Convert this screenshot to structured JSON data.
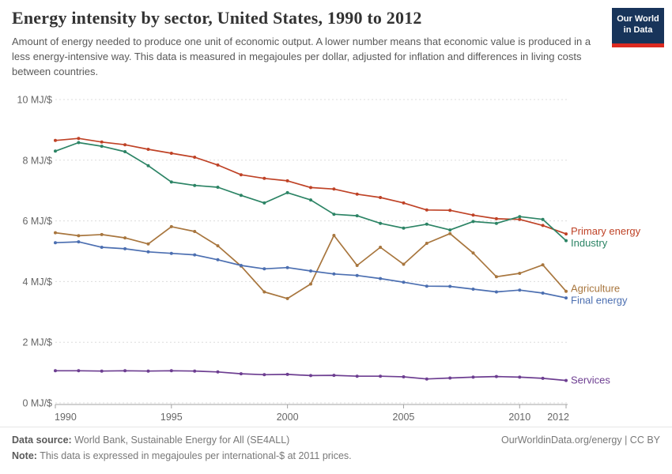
{
  "header": {
    "title": "Energy intensity by sector, United States, 1990 to 2012",
    "subtitle": "Amount of energy needed to produce one unit of economic output. A lower number means that economic value is produced in a less energy-intensive way. This data is measured in megajoules per dollar, adjusted for inflation and differences in living costs between countries.",
    "logo": {
      "line1": "Our World",
      "line2": "in Data",
      "bg_color": "#18345a",
      "stripe_color": "#dc2a20",
      "text_color": "#ffffff"
    }
  },
  "chart_data": {
    "type": "line",
    "title": "Energy intensity by sector, United States, 1990 to 2012",
    "ylabel": "",
    "xlabel": "",
    "unit": "MJ/$",
    "xlim": [
      1990,
      2012
    ],
    "ylim": [
      0,
      10
    ],
    "x_ticks": [
      1990,
      1995,
      2000,
      2005,
      2010,
      2012
    ],
    "y_ticks": [
      0,
      2,
      4,
      6,
      8,
      10
    ],
    "y_tick_suffix": " MJ/$",
    "grid": true,
    "grid_color": "#dcdcdc",
    "axis_color": "#a3a3a3",
    "tick_label_color": "#666666",
    "legend_position": "right of line ends",
    "x": [
      1990,
      1991,
      1992,
      1993,
      1994,
      1995,
      1996,
      1997,
      1998,
      1999,
      2000,
      2001,
      2002,
      2003,
      2004,
      2005,
      2006,
      2007,
      2008,
      2009,
      2010,
      2011,
      2012
    ],
    "series": [
      {
        "name": "Primary energy",
        "color": "#bf4226",
        "values": [
          8.65,
          8.72,
          8.6,
          8.51,
          8.36,
          8.23,
          8.1,
          7.84,
          7.52,
          7.4,
          7.32,
          7.1,
          7.05,
          6.88,
          6.77,
          6.59,
          6.36,
          6.35,
          6.19,
          6.07,
          6.05,
          5.85,
          5.57
        ]
      },
      {
        "name": "Industry",
        "color": "#2c8465",
        "values": [
          8.3,
          8.58,
          8.46,
          8.28,
          7.82,
          7.28,
          7.17,
          7.11,
          6.84,
          6.59,
          6.93,
          6.69,
          6.22,
          6.17,
          5.92,
          5.76,
          5.89,
          5.7,
          5.98,
          5.92,
          6.14,
          6.05,
          5.35
        ]
      },
      {
        "name": "Agriculture",
        "color": "#a8763e",
        "values": [
          5.61,
          5.51,
          5.55,
          5.44,
          5.24,
          5.81,
          5.65,
          5.18,
          4.51,
          3.66,
          3.44,
          3.92,
          5.52,
          4.53,
          5.13,
          4.57,
          5.26,
          5.58,
          4.94,
          4.16,
          4.27,
          4.55,
          3.68
        ]
      },
      {
        "name": "Final energy",
        "color": "#4c6fb1",
        "values": [
          5.28,
          5.31,
          5.13,
          5.08,
          4.98,
          4.93,
          4.88,
          4.72,
          4.53,
          4.42,
          4.46,
          4.35,
          4.25,
          4.2,
          4.1,
          3.98,
          3.85,
          3.84,
          3.75,
          3.66,
          3.72,
          3.62,
          3.46
        ]
      },
      {
        "name": "Services",
        "color": "#6d3e91",
        "values": [
          1.06,
          1.06,
          1.05,
          1.06,
          1.05,
          1.06,
          1.05,
          1.02,
          0.96,
          0.93,
          0.94,
          0.9,
          0.91,
          0.88,
          0.88,
          0.86,
          0.79,
          0.82,
          0.85,
          0.87,
          0.85,
          0.81,
          0.74
        ]
      }
    ]
  },
  "footer": {
    "datasource_label": "Data source:",
    "datasource_text": " World Bank, Sustainable Energy for All (SE4ALL)",
    "note_label": "Note:",
    "note_text": " This data is expressed in megajoules per international-$ at 2011 prices.",
    "link": "OurWorldinData.org/energy",
    "separator": " | ",
    "license": "CC BY"
  }
}
